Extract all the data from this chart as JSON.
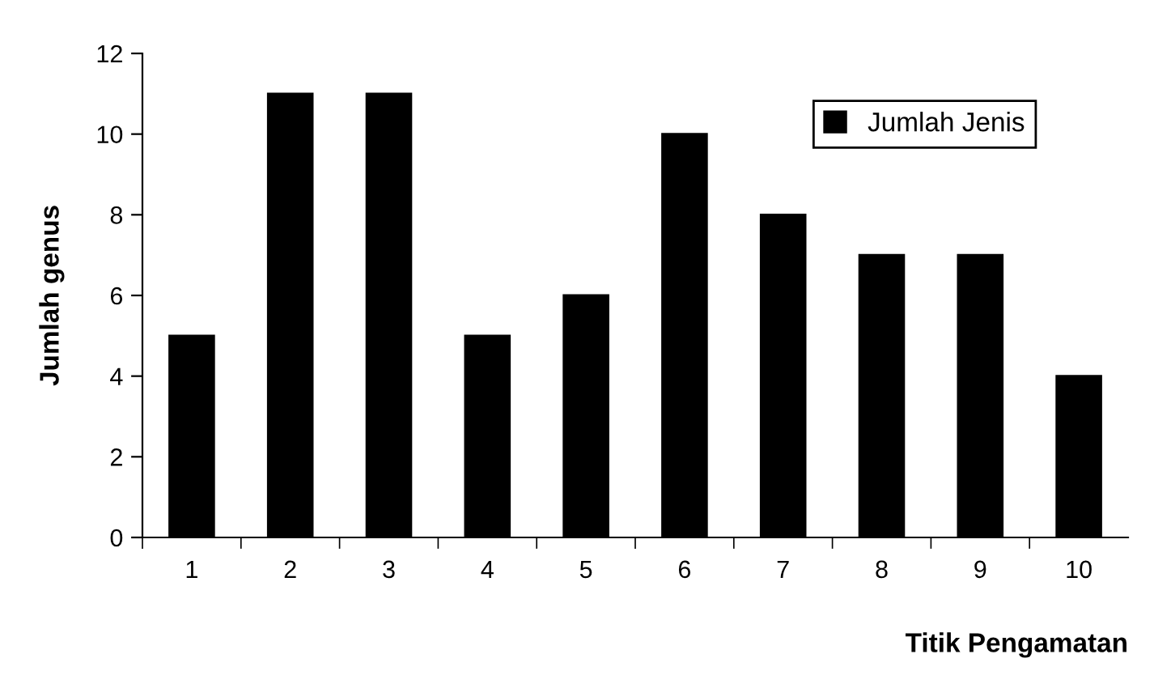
{
  "chart_data": {
    "type": "bar",
    "xlabel": "Titik Pengamatan",
    "ylabel": "Jumlah genus",
    "categories": [
      "1",
      "2",
      "3",
      "4",
      "5",
      "6",
      "7",
      "8",
      "9",
      "10"
    ],
    "series": [
      {
        "name": "Jumlah Jenis",
        "color": "#000000",
        "values": [
          5,
          11,
          11,
          5,
          6,
          10,
          8,
          7,
          7,
          4
        ]
      }
    ],
    "ylim": [
      0,
      12
    ],
    "yticks": [
      0,
      2,
      4,
      6,
      8,
      10,
      12
    ],
    "grid": false,
    "legend": "top right"
  }
}
